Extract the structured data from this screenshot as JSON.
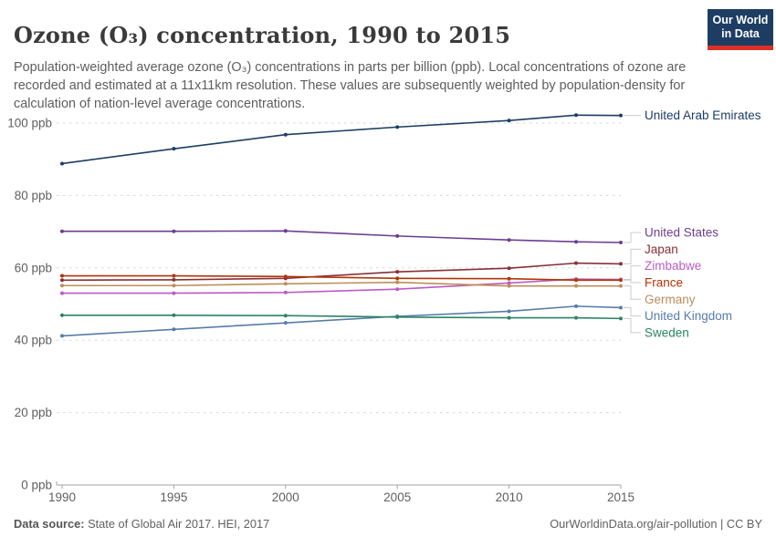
{
  "header": {
    "title": "Ozone (O₃) concentration, 1990 to 2015",
    "subtitle": "Population-weighted average ozone (O₃) concentrations in parts per billion (ppb). Local concentrations of ozone are recorded and estimated at a 11x11km resolution. These values are subsequently weighted by population-density for calculation of nation-level average concentrations."
  },
  "logo": {
    "line1": "Our World",
    "line2": "in Data",
    "bg_color": "#1d3d63",
    "bar_color": "#dc3026"
  },
  "chart_data": {
    "type": "line",
    "title": "Ozone (O₃) concentration, 1990 to 2015",
    "xlabel": "",
    "ylabel": "",
    "x": [
      1990,
      1995,
      2000,
      2005,
      2010,
      2013,
      2015
    ],
    "x_ticks": [
      1990,
      1995,
      2000,
      2005,
      2010,
      2015
    ],
    "y_ticks": [
      0,
      20,
      40,
      60,
      80,
      100
    ],
    "y_tick_suffix": " ppb",
    "ylim": [
      0,
      105
    ],
    "xlim": [
      1990,
      2015
    ],
    "grid": "dashed horizontal",
    "legend_position": "right-end-labels",
    "marker": "point",
    "series": [
      {
        "name": "United Arab Emirates",
        "color": "#1d3d63",
        "values": [
          88.8,
          92.9,
          96.8,
          98.9,
          100.7,
          102.2,
          102.1
        ]
      },
      {
        "name": "United States",
        "color": "#6d3e91",
        "values": [
          70.1,
          70.1,
          70.2,
          68.8,
          67.7,
          67.2,
          67.0
        ]
      },
      {
        "name": "Japan",
        "color": "#883039",
        "values": [
          56.6,
          56.7,
          57.1,
          58.9,
          59.9,
          61.3,
          61.1
        ]
      },
      {
        "name": "Zimbabwe",
        "color": "#bc5bc2",
        "values": [
          53.0,
          53.0,
          53.2,
          54.1,
          55.8,
          56.9,
          56.8
        ]
      },
      {
        "name": "France",
        "color": "#b13507",
        "values": [
          57.8,
          57.8,
          57.6,
          57.1,
          57.0,
          56.6,
          56.6
        ]
      },
      {
        "name": "Germany",
        "color": "#bc8e5a",
        "values": [
          55.1,
          55.1,
          55.6,
          56.0,
          55.0,
          55.0,
          55.0
        ]
      },
      {
        "name": "United Kingdom",
        "color": "#577ca9",
        "values": [
          41.2,
          43.0,
          44.8,
          46.6,
          48.0,
          49.4,
          49.0
        ]
      },
      {
        "name": "Sweden",
        "color": "#2c8465",
        "values": [
          46.9,
          46.9,
          46.8,
          46.4,
          46.2,
          46.2,
          46.0
        ]
      }
    ],
    "axis_color": "#a3a3a3",
    "grid_color": "#d6d6d6",
    "tick_label_color": "#5f5f5f",
    "connector_color": "#cccccc"
  },
  "footer": {
    "source_label": "Data source:",
    "source_text": " State of Global Air 2017. HEI, 2017",
    "right_text": "OurWorldinData.org/air-pollution | CC BY"
  }
}
